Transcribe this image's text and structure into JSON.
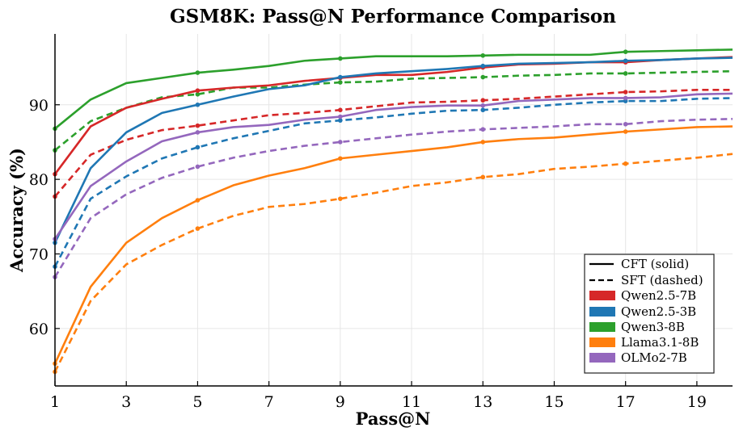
{
  "chart_data": {
    "type": "line",
    "title": "GSM8K: Pass@N Performance Comparison",
    "xlabel": "Pass@N",
    "ylabel": "Accuracy (%)",
    "xlim": [
      1,
      20
    ],
    "ylim": [
      52.3,
      99.5
    ],
    "xticks": [
      1,
      3,
      5,
      7,
      9,
      11,
      13,
      15,
      17,
      19
    ],
    "yticks": [
      60,
      70,
      80,
      90
    ],
    "grid": true,
    "legend_position": "bottom-right",
    "legend": {
      "style_entries": [
        {
          "label": "CFT (solid)",
          "dash": false
        },
        {
          "label": "SFT (dashed)",
          "dash": true
        }
      ],
      "model_entries": [
        {
          "label": "Qwen2.5-7B",
          "color": "#d62728"
        },
        {
          "label": "Qwen2.5-3B",
          "color": "#1f77b4"
        },
        {
          "label": "Qwen3-8B",
          "color": "#2ca02c"
        },
        {
          "label": "Llama3.1-8B",
          "color": "#ff7f0e"
        },
        {
          "label": "OLMo2-7B",
          "color": "#9467bd"
        }
      ]
    },
    "x": [
      1,
      2,
      3,
      4,
      5,
      6,
      7,
      8,
      9,
      10,
      11,
      12,
      13,
      14,
      15,
      16,
      17,
      18,
      19,
      20
    ],
    "series": [
      {
        "model": "Qwen3-8B",
        "method": "CFT",
        "color": "#2ca02c",
        "dashed": false,
        "values": [
          86.8,
          90.7,
          92.9,
          93.6,
          94.3,
          94.7,
          95.2,
          95.9,
          96.2,
          96.5,
          96.5,
          96.5,
          96.6,
          96.7,
          96.7,
          96.7,
          97.1,
          97.2,
          97.3,
          97.4
        ]
      },
      {
        "model": "Qwen3-8B",
        "method": "SFT",
        "color": "#2ca02c",
        "dashed": true,
        "values": [
          83.9,
          87.8,
          89.6,
          91.0,
          91.4,
          92.3,
          92.3,
          92.7,
          93.0,
          93.1,
          93.5,
          93.6,
          93.7,
          93.9,
          94.0,
          94.2,
          94.2,
          94.3,
          94.4,
          94.5
        ]
      },
      {
        "model": "Qwen2.5-7B",
        "method": "CFT",
        "color": "#d62728",
        "dashed": false,
        "values": [
          80.7,
          87.1,
          89.6,
          90.8,
          91.9,
          92.3,
          92.6,
          93.2,
          93.6,
          94.0,
          94.0,
          94.4,
          95.0,
          95.4,
          95.5,
          95.7,
          95.7,
          96.0,
          96.2,
          96.4
        ]
      },
      {
        "model": "Qwen2.5-7B",
        "method": "SFT",
        "color": "#d62728",
        "dashed": true,
        "values": [
          77.7,
          83.3,
          85.3,
          86.6,
          87.2,
          87.9,
          88.6,
          88.9,
          89.3,
          89.8,
          90.3,
          90.4,
          90.6,
          90.8,
          91.1,
          91.4,
          91.7,
          91.8,
          92.0,
          92.0
        ]
      },
      {
        "model": "Qwen2.5-3B",
        "method": "CFT",
        "color": "#1f77b4",
        "dashed": false,
        "values": [
          71.5,
          81.5,
          86.3,
          88.9,
          90.0,
          91.1,
          92.1,
          92.6,
          93.7,
          94.2,
          94.5,
          94.8,
          95.2,
          95.5,
          95.6,
          95.7,
          95.9,
          96.0,
          96.2,
          96.3
        ]
      },
      {
        "model": "Qwen2.5-3B",
        "method": "SFT",
        "color": "#1f77b4",
        "dashed": true,
        "values": [
          68.3,
          77.4,
          80.4,
          82.8,
          84.3,
          85.5,
          86.5,
          87.5,
          87.9,
          88.3,
          88.8,
          89.2,
          89.3,
          89.6,
          90.0,
          90.3,
          90.5,
          90.5,
          90.8,
          90.9
        ]
      },
      {
        "model": "OLMo2-7B",
        "method": "CFT",
        "color": "#9467bd",
        "dashed": false,
        "values": [
          72.0,
          79.1,
          82.4,
          85.1,
          86.3,
          87.0,
          87.3,
          88.0,
          88.4,
          89.3,
          89.7,
          89.9,
          89.9,
          90.5,
          90.7,
          90.9,
          90.9,
          91.0,
          91.4,
          91.5
        ]
      },
      {
        "model": "OLMo2-7B",
        "method": "SFT",
        "color": "#9467bd",
        "dashed": true,
        "values": [
          66.9,
          74.8,
          78.0,
          80.2,
          81.7,
          82.9,
          83.8,
          84.5,
          85.0,
          85.5,
          86.0,
          86.4,
          86.7,
          86.9,
          87.1,
          87.4,
          87.4,
          87.8,
          88.0,
          88.1
        ]
      },
      {
        "model": "Llama3.1-8B",
        "method": "CFT",
        "color": "#ff7f0e",
        "dashed": false,
        "values": [
          55.3,
          65.6,
          71.5,
          74.8,
          77.2,
          79.2,
          80.5,
          81.5,
          82.8,
          83.3,
          83.8,
          84.3,
          85.0,
          85.4,
          85.6,
          86.0,
          86.4,
          86.7,
          87.0,
          87.1
        ]
      },
      {
        "model": "Llama3.1-8B",
        "method": "SFT",
        "color": "#ff7f0e",
        "dashed": true,
        "values": [
          54.2,
          63.7,
          68.6,
          71.2,
          73.4,
          75.1,
          76.3,
          76.7,
          77.4,
          78.2,
          79.1,
          79.6,
          80.3,
          80.7,
          81.4,
          81.7,
          82.1,
          82.5,
          82.9,
          83.4
        ]
      }
    ]
  }
}
